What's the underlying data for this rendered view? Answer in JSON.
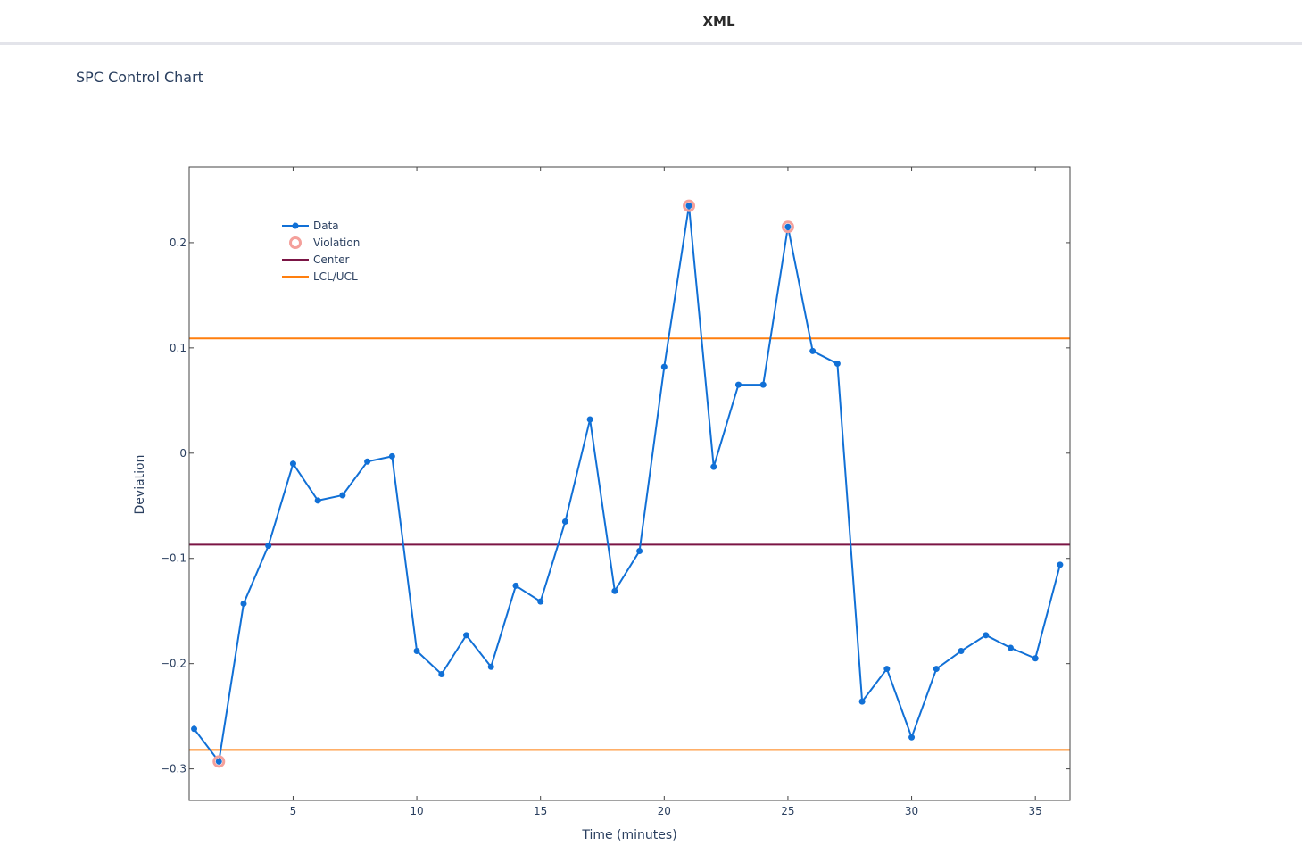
{
  "header": {
    "title": "XML"
  },
  "chart_title": "SPC Control Chart",
  "chart_data": {
    "type": "line",
    "title": "SPC Control Chart",
    "xlabel": "Time (minutes)",
    "ylabel": "Deviation",
    "xlim": [
      0.8,
      36.4
    ],
    "ylim": [
      -0.33,
      0.272
    ],
    "x_ticks": [
      5,
      10,
      15,
      20,
      25,
      30,
      35
    ],
    "y_ticks": [
      -0.3,
      -0.2,
      -0.1,
      0,
      0.1,
      0.2
    ],
    "y_tick_labels": [
      "−0.3",
      "−0.2",
      "−0.1",
      "0",
      "0.1",
      "0.2"
    ],
    "grid": false,
    "legend_position": "top-left",
    "series": [
      {
        "name": "Data",
        "mode": "lines+markers",
        "color": "#1170d6",
        "x": [
          1,
          2,
          3,
          4,
          5,
          6,
          7,
          8,
          9,
          10,
          11,
          12,
          13,
          14,
          15,
          16,
          17,
          18,
          19,
          20,
          21,
          22,
          23,
          24,
          25,
          26,
          27,
          28,
          29,
          30,
          31,
          32,
          33,
          34,
          35,
          36
        ],
        "y": [
          -0.262,
          -0.293,
          -0.143,
          -0.088,
          -0.01,
          -0.045,
          -0.04,
          -0.008,
          -0.003,
          -0.188,
          -0.21,
          -0.173,
          -0.203,
          -0.126,
          -0.141,
          -0.065,
          0.032,
          -0.131,
          -0.093,
          0.082,
          0.235,
          -0.013,
          0.065,
          0.065,
          0.215,
          0.097,
          0.085,
          -0.236,
          -0.205,
          -0.27,
          -0.205,
          -0.188,
          -0.173,
          -0.185,
          -0.195,
          -0.106
        ]
      },
      {
        "name": "Violation",
        "mode": "markers",
        "color": "#f4a09b",
        "x": [
          2,
          21,
          25
        ],
        "y": [
          -0.293,
          0.235,
          0.215
        ]
      },
      {
        "name": "Center",
        "mode": "hline",
        "color": "#7b1545",
        "y": -0.087
      },
      {
        "name": "LCL/UCL",
        "mode": "hline",
        "color": "#ff7f0e",
        "y": [
          -0.282,
          0.109
        ]
      }
    ]
  }
}
